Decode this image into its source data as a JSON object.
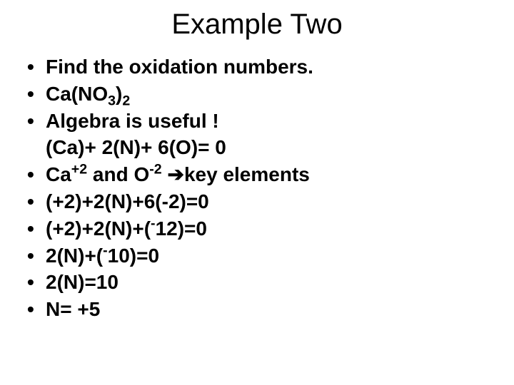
{
  "title": "Example Two",
  "bullets": {
    "b1": "Find the oxidation numbers.",
    "b2_pre": "Ca(NO",
    "b2_sub1": "3",
    "b2_mid": ")",
    "b2_sub2": "2",
    "b3": "Algebra is useful !",
    "b3_sub": "(Ca)+ 2(N)+ 6(O)=  0",
    "b4_pre": "Ca",
    "b4_sup1": "+2",
    "b4_mid1": " and O",
    "b4_sup2": "-2",
    "b4_mid2": " ",
    "b4_arrow": "➔",
    "b4_post": "key elements",
    "b5": "(+2)+2(N)+6(-2)=0",
    "b6_pre": "(+2)+2(N)+(",
    "b6_sup": "-",
    "b6_post": "12)=0",
    "b7_pre": "2(N)+(",
    "b7_sup": "-",
    "b7_post": "10)=0",
    "b8": "2(N)=10",
    "b9": " N= +5"
  },
  "style": {
    "background": "#ffffff",
    "text_color": "#000000",
    "title_fontsize": 40,
    "body_fontsize": 28,
    "body_fontweight": "bold",
    "bullet_char": "•"
  }
}
